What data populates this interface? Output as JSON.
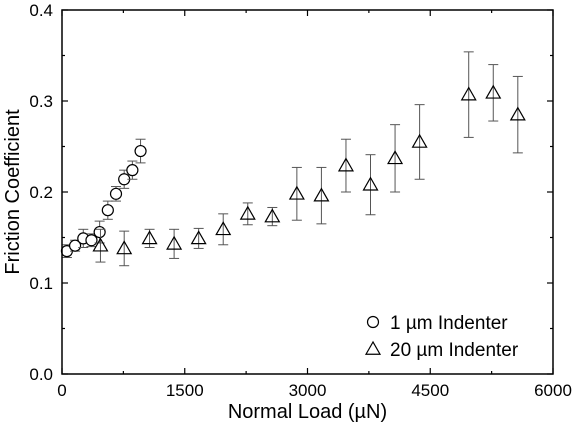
{
  "chart_data": {
    "type": "scatter",
    "xlabel": "Normal Load (µN)",
    "ylabel": "Friction Coefficient",
    "xlim": [
      0,
      6000
    ],
    "ylim": [
      0.0,
      0.4
    ],
    "x_ticks": [
      "0",
      "1500",
      "3000",
      "4500",
      "6000"
    ],
    "y_ticks": [
      "0.0",
      "0.1",
      "0.2",
      "0.3",
      "0.4"
    ],
    "x_minor_step": 750,
    "y_minor_step": 0.05,
    "legend_position": "bottom-right",
    "grid": false,
    "series": [
      {
        "name": "1 µm Indenter",
        "marker": "circle",
        "points": [
          {
            "x": 60,
            "y": 0.135,
            "err": 0.007
          },
          {
            "x": 160,
            "y": 0.141,
            "err": 0.006
          },
          {
            "x": 260,
            "y": 0.149,
            "err": 0.01
          },
          {
            "x": 360,
            "y": 0.147,
            "err": 0.007
          },
          {
            "x": 460,
            "y": 0.156,
            "err": 0.012
          },
          {
            "x": 560,
            "y": 0.18,
            "err": 0.01
          },
          {
            "x": 660,
            "y": 0.198,
            "err": 0.008
          },
          {
            "x": 760,
            "y": 0.214,
            "err": 0.01
          },
          {
            "x": 860,
            "y": 0.224,
            "err": 0.01
          },
          {
            "x": 960,
            "y": 0.245,
            "err": 0.013
          }
        ]
      },
      {
        "name": "20 µm Indenter",
        "marker": "triangle",
        "points": [
          {
            "x": 470,
            "y": 0.141,
            "err": 0.018
          },
          {
            "x": 760,
            "y": 0.138,
            "err": 0.019
          },
          {
            "x": 1070,
            "y": 0.149,
            "err": 0.01
          },
          {
            "x": 1370,
            "y": 0.143,
            "err": 0.016
          },
          {
            "x": 1670,
            "y": 0.149,
            "err": 0.011
          },
          {
            "x": 1970,
            "y": 0.159,
            "err": 0.017
          },
          {
            "x": 2270,
            "y": 0.176,
            "err": 0.012
          },
          {
            "x": 2570,
            "y": 0.173,
            "err": 0.01
          },
          {
            "x": 2870,
            "y": 0.198,
            "err": 0.029
          },
          {
            "x": 3170,
            "y": 0.196,
            "err": 0.031
          },
          {
            "x": 3470,
            "y": 0.229,
            "err": 0.029
          },
          {
            "x": 3770,
            "y": 0.208,
            "err": 0.033
          },
          {
            "x": 4070,
            "y": 0.237,
            "err": 0.037
          },
          {
            "x": 4370,
            "y": 0.255,
            "err": 0.041
          },
          {
            "x": 4970,
            "y": 0.307,
            "err": 0.047
          },
          {
            "x": 5270,
            "y": 0.309,
            "err": 0.031
          },
          {
            "x": 5570,
            "y": 0.285,
            "err": 0.042
          }
        ]
      }
    ]
  }
}
